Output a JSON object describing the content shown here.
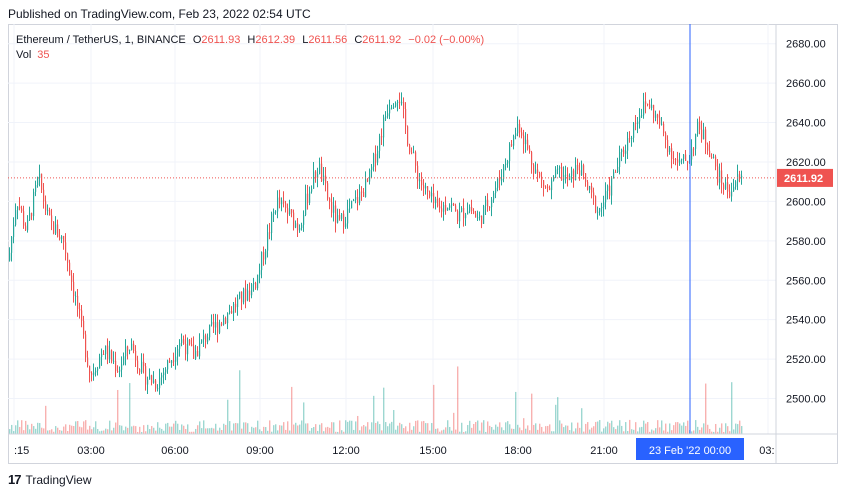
{
  "published": "Published on TradingView.com, Feb 23, 2022 02:54 UTC",
  "legend": {
    "symbol": "Ethereum / TetherUS, 1, BINANCE",
    "o_label": "O",
    "o": "2611.93",
    "h_label": "H",
    "h": "2612.39",
    "l_label": "L",
    "l": "2611.56",
    "c_label": "C",
    "c": "2611.92",
    "change": "−0.02 (−0.00%)",
    "vol_label": "Vol",
    "vol": "35"
  },
  "footer": {
    "logo": "17",
    "brand": "TradingView"
  },
  "colors": {
    "up": "#26a69a",
    "down": "#ef5350",
    "crosshair": "#2962ff",
    "grid": "#f0f3fa"
  },
  "chart_data": {
    "type": "candlestick",
    "symbol": "ETHUSDT",
    "interval": "1",
    "ylim": [
      2482,
      2690
    ],
    "y_ticks": [
      "2680.00",
      "2660.00",
      "2640.00",
      "2620.00",
      "2600.00",
      "2580.00",
      "2560.00",
      "2540.00",
      "2520.00",
      "2500.00"
    ],
    "x_ticks": [
      ":15",
      "03:00",
      "06:00",
      "09:00",
      "12:00",
      "15:00",
      "18:00",
      "21:00",
      "00:00",
      "03: "
    ],
    "last_price": "2611.92",
    "last_price_value": 2611.92,
    "crosshair_label": "23 Feb '22   00:00",
    "price_path": [
      [
        0,
        2570
      ],
      [
        8,
        2602
      ],
      [
        18,
        2585
      ],
      [
        30,
        2612
      ],
      [
        40,
        2590
      ],
      [
        55,
        2580
      ],
      [
        68,
        2548
      ],
      [
        82,
        2512
      ],
      [
        95,
        2525
      ],
      [
        110,
        2515
      ],
      [
        122,
        2528
      ],
      [
        135,
        2512
      ],
      [
        148,
        2508
      ],
      [
        160,
        2518
      ],
      [
        172,
        2530
      ],
      [
        185,
        2522
      ],
      [
        198,
        2532
      ],
      [
        210,
        2538
      ],
      [
        222,
        2545
      ],
      [
        235,
        2552
      ],
      [
        248,
        2560
      ],
      [
        258,
        2580
      ],
      [
        268,
        2600
      ],
      [
        278,
        2595
      ],
      [
        290,
        2587
      ],
      [
        300,
        2605
      ],
      [
        310,
        2618
      ],
      [
        320,
        2600
      ],
      [
        330,
        2588
      ],
      [
        340,
        2595
      ],
      [
        350,
        2602
      ],
      [
        360,
        2610
      ],
      [
        370,
        2630
      ],
      [
        380,
        2650
      ],
      [
        390,
        2655
      ],
      [
        400,
        2630
      ],
      [
        410,
        2612
      ],
      [
        420,
        2602
      ],
      [
        430,
        2595
      ],
      [
        440,
        2600
      ],
      [
        450,
        2592
      ],
      [
        460,
        2598
      ],
      [
        470,
        2590
      ],
      [
        480,
        2600
      ],
      [
        490,
        2610
      ],
      [
        500,
        2625
      ],
      [
        510,
        2640
      ],
      [
        520,
        2625
      ],
      [
        530,
        2612
      ],
      [
        540,
        2605
      ],
      [
        550,
        2615
      ],
      [
        560,
        2610
      ],
      [
        570,
        2618
      ],
      [
        580,
        2605
      ],
      [
        590,
        2595
      ],
      [
        600,
        2605
      ],
      [
        610,
        2620
      ],
      [
        620,
        2632
      ],
      [
        630,
        2645
      ],
      [
        640,
        2650
      ],
      [
        650,
        2640
      ],
      [
        660,
        2628
      ],
      [
        670,
        2618
      ],
      [
        680,
        2622
      ],
      [
        690,
        2638
      ],
      [
        700,
        2628
      ],
      [
        710,
        2612
      ],
      [
        720,
        2605
      ],
      [
        730,
        2611.92
      ]
    ]
  }
}
